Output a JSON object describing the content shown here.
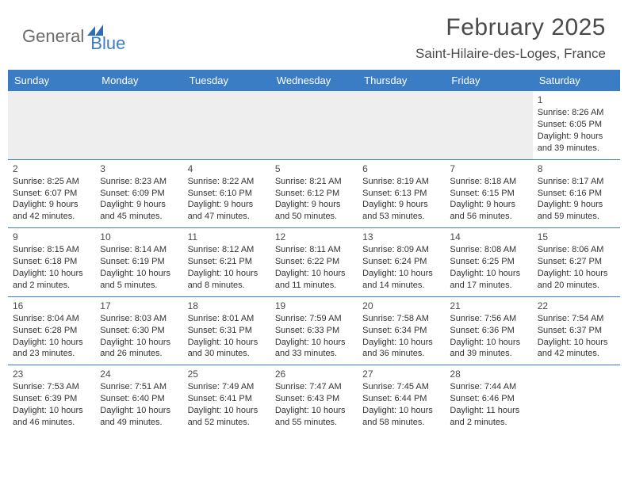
{
  "logo": {
    "part1": "General",
    "part2": "Blue"
  },
  "title": "February 2025",
  "location": "Saint-Hilaire-des-Loges, France",
  "colors": {
    "header_bg": "#3b7dc4",
    "gray_bg": "#eeeeee",
    "text": "#333333"
  },
  "day_headers": [
    "Sunday",
    "Monday",
    "Tuesday",
    "Wednesday",
    "Thursday",
    "Friday",
    "Saturday"
  ],
  "weeks": [
    [
      null,
      null,
      null,
      null,
      null,
      null,
      {
        "d": "1",
        "sr": "Sunrise: 8:26 AM",
        "ss": "Sunset: 6:05 PM",
        "dl1": "Daylight: 9 hours",
        "dl2": "and 39 minutes."
      }
    ],
    [
      {
        "d": "2",
        "sr": "Sunrise: 8:25 AM",
        "ss": "Sunset: 6:07 PM",
        "dl1": "Daylight: 9 hours",
        "dl2": "and 42 minutes."
      },
      {
        "d": "3",
        "sr": "Sunrise: 8:23 AM",
        "ss": "Sunset: 6:09 PM",
        "dl1": "Daylight: 9 hours",
        "dl2": "and 45 minutes."
      },
      {
        "d": "4",
        "sr": "Sunrise: 8:22 AM",
        "ss": "Sunset: 6:10 PM",
        "dl1": "Daylight: 9 hours",
        "dl2": "and 47 minutes."
      },
      {
        "d": "5",
        "sr": "Sunrise: 8:21 AM",
        "ss": "Sunset: 6:12 PM",
        "dl1": "Daylight: 9 hours",
        "dl2": "and 50 minutes."
      },
      {
        "d": "6",
        "sr": "Sunrise: 8:19 AM",
        "ss": "Sunset: 6:13 PM",
        "dl1": "Daylight: 9 hours",
        "dl2": "and 53 minutes."
      },
      {
        "d": "7",
        "sr": "Sunrise: 8:18 AM",
        "ss": "Sunset: 6:15 PM",
        "dl1": "Daylight: 9 hours",
        "dl2": "and 56 minutes."
      },
      {
        "d": "8",
        "sr": "Sunrise: 8:17 AM",
        "ss": "Sunset: 6:16 PM",
        "dl1": "Daylight: 9 hours",
        "dl2": "and 59 minutes."
      }
    ],
    [
      {
        "d": "9",
        "sr": "Sunrise: 8:15 AM",
        "ss": "Sunset: 6:18 PM",
        "dl1": "Daylight: 10 hours",
        "dl2": "and 2 minutes."
      },
      {
        "d": "10",
        "sr": "Sunrise: 8:14 AM",
        "ss": "Sunset: 6:19 PM",
        "dl1": "Daylight: 10 hours",
        "dl2": "and 5 minutes."
      },
      {
        "d": "11",
        "sr": "Sunrise: 8:12 AM",
        "ss": "Sunset: 6:21 PM",
        "dl1": "Daylight: 10 hours",
        "dl2": "and 8 minutes."
      },
      {
        "d": "12",
        "sr": "Sunrise: 8:11 AM",
        "ss": "Sunset: 6:22 PM",
        "dl1": "Daylight: 10 hours",
        "dl2": "and 11 minutes."
      },
      {
        "d": "13",
        "sr": "Sunrise: 8:09 AM",
        "ss": "Sunset: 6:24 PM",
        "dl1": "Daylight: 10 hours",
        "dl2": "and 14 minutes."
      },
      {
        "d": "14",
        "sr": "Sunrise: 8:08 AM",
        "ss": "Sunset: 6:25 PM",
        "dl1": "Daylight: 10 hours",
        "dl2": "and 17 minutes."
      },
      {
        "d": "15",
        "sr": "Sunrise: 8:06 AM",
        "ss": "Sunset: 6:27 PM",
        "dl1": "Daylight: 10 hours",
        "dl2": "and 20 minutes."
      }
    ],
    [
      {
        "d": "16",
        "sr": "Sunrise: 8:04 AM",
        "ss": "Sunset: 6:28 PM",
        "dl1": "Daylight: 10 hours",
        "dl2": "and 23 minutes."
      },
      {
        "d": "17",
        "sr": "Sunrise: 8:03 AM",
        "ss": "Sunset: 6:30 PM",
        "dl1": "Daylight: 10 hours",
        "dl2": "and 26 minutes."
      },
      {
        "d": "18",
        "sr": "Sunrise: 8:01 AM",
        "ss": "Sunset: 6:31 PM",
        "dl1": "Daylight: 10 hours",
        "dl2": "and 30 minutes."
      },
      {
        "d": "19",
        "sr": "Sunrise: 7:59 AM",
        "ss": "Sunset: 6:33 PM",
        "dl1": "Daylight: 10 hours",
        "dl2": "and 33 minutes."
      },
      {
        "d": "20",
        "sr": "Sunrise: 7:58 AM",
        "ss": "Sunset: 6:34 PM",
        "dl1": "Daylight: 10 hours",
        "dl2": "and 36 minutes."
      },
      {
        "d": "21",
        "sr": "Sunrise: 7:56 AM",
        "ss": "Sunset: 6:36 PM",
        "dl1": "Daylight: 10 hours",
        "dl2": "and 39 minutes."
      },
      {
        "d": "22",
        "sr": "Sunrise: 7:54 AM",
        "ss": "Sunset: 6:37 PM",
        "dl1": "Daylight: 10 hours",
        "dl2": "and 42 minutes."
      }
    ],
    [
      {
        "d": "23",
        "sr": "Sunrise: 7:53 AM",
        "ss": "Sunset: 6:39 PM",
        "dl1": "Daylight: 10 hours",
        "dl2": "and 46 minutes."
      },
      {
        "d": "24",
        "sr": "Sunrise: 7:51 AM",
        "ss": "Sunset: 6:40 PM",
        "dl1": "Daylight: 10 hours",
        "dl2": "and 49 minutes."
      },
      {
        "d": "25",
        "sr": "Sunrise: 7:49 AM",
        "ss": "Sunset: 6:41 PM",
        "dl1": "Daylight: 10 hours",
        "dl2": "and 52 minutes."
      },
      {
        "d": "26",
        "sr": "Sunrise: 7:47 AM",
        "ss": "Sunset: 6:43 PM",
        "dl1": "Daylight: 10 hours",
        "dl2": "and 55 minutes."
      },
      {
        "d": "27",
        "sr": "Sunrise: 7:45 AM",
        "ss": "Sunset: 6:44 PM",
        "dl1": "Daylight: 10 hours",
        "dl2": "and 58 minutes."
      },
      {
        "d": "28",
        "sr": "Sunrise: 7:44 AM",
        "ss": "Sunset: 6:46 PM",
        "dl1": "Daylight: 11 hours",
        "dl2": "and 2 minutes."
      },
      null
    ]
  ]
}
